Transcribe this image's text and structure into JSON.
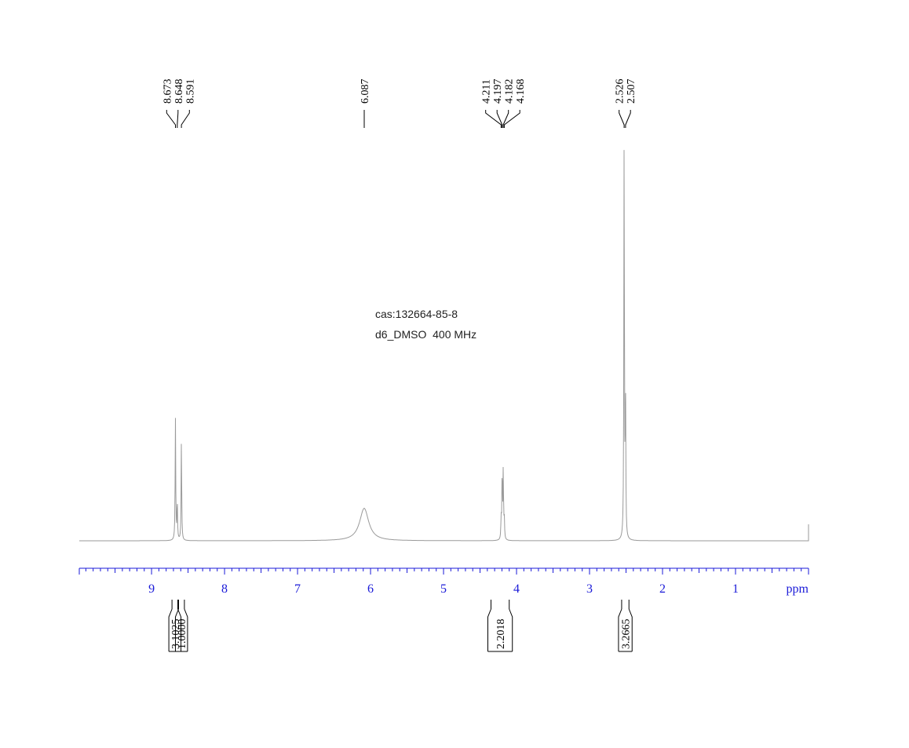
{
  "chart_data": {
    "type": "line",
    "title": "",
    "xlabel": "ppm",
    "ylabel": "",
    "xlim": [
      9.99,
      0.0
    ],
    "x_direction": "decreasing",
    "grid": false,
    "legend": "none",
    "x_ticks": [
      "9",
      "8",
      "7",
      "6",
      "5",
      "4",
      "3",
      "2",
      "1"
    ],
    "annotations": [
      "cas:132664-85-8",
      "d6_DMSO  400 MHz"
    ],
    "peaks": [
      {
        "ppm": 8.673,
        "label": "8.673",
        "intensity": 0.3
      },
      {
        "ppm": 8.648,
        "label": "8.648",
        "intensity": 0.1
      },
      {
        "ppm": 8.591,
        "label": "8.591",
        "intensity": 0.25
      },
      {
        "ppm": 6.087,
        "label": "6.087",
        "intensity": 0.08,
        "broad": true
      },
      {
        "ppm": 4.211,
        "label": "4.211",
        "intensity": 0.05
      },
      {
        "ppm": 4.197,
        "label": "4.197",
        "intensity": 0.17
      },
      {
        "ppm": 4.182,
        "label": "4.182",
        "intensity": 0.17
      },
      {
        "ppm": 4.168,
        "label": "4.168",
        "intensity": 0.05
      },
      {
        "ppm": 2.526,
        "label": "2.526",
        "intensity": 1.0
      },
      {
        "ppm": 2.507,
        "label": "2.507",
        "intensity": 0.35
      }
    ],
    "integrals": [
      {
        "from": 8.72,
        "to": 8.64,
        "value": "3.1025"
      },
      {
        "from": 8.63,
        "to": 8.55,
        "value": "1.0000"
      },
      {
        "from": 4.35,
        "to": 4.1,
        "value": "2.2018"
      },
      {
        "from": 2.56,
        "to": 2.46,
        "value": "3.2665"
      }
    ],
    "peak_label_groups": [
      {
        "labels": [
          "8.673",
          "8.648",
          "8.591"
        ]
      },
      {
        "labels": [
          "6.087"
        ]
      },
      {
        "labels": [
          "4.211",
          "4.197",
          "4.182",
          "4.168"
        ]
      },
      {
        "labels": [
          "2.526",
          "2.507"
        ]
      }
    ]
  }
}
